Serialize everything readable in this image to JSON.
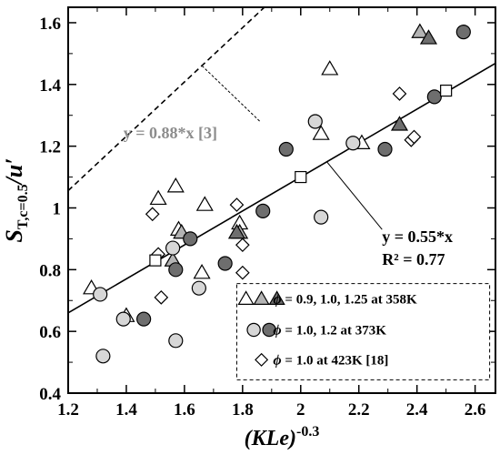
{
  "chart_data": {
    "type": "scatter",
    "xlim": [
      1.2,
      2.67
    ],
    "ylim": [
      0.4,
      1.65
    ],
    "x_ticks": [
      "1.2",
      "1.4",
      "1.6",
      "1.8",
      "2",
      "2.2",
      "2.4",
      "2.6"
    ],
    "y_ticks": [
      "0.4",
      "0.6",
      "0.8",
      "1",
      "1.2",
      "1.4",
      "1.6"
    ],
    "xlabel": {
      "main": "(KLe)",
      "sup": "-0.3"
    },
    "ylabel": {
      "main": "S",
      "sub": "T,c=0.5",
      "tail": "/u′"
    },
    "grid": false,
    "legend_position": "bottom-right",
    "fits": [
      {
        "slope": 0.55,
        "style": "solid",
        "color": "#000000",
        "label": "y = 0.55*x",
        "label2": "R² = 0.77"
      },
      {
        "slope": 0.88,
        "style": "dashed",
        "color": "#000000",
        "label": "y = 0.88*x [3]",
        "label_color": "#8c8c8c"
      }
    ],
    "series": [
      {
        "marker": "triangle",
        "fill": "#ffffff",
        "group": 0,
        "points": [
          [
            1.28,
            0.74
          ],
          [
            1.4,
            0.65
          ],
          [
            1.51,
            1.03
          ],
          [
            1.57,
            1.07
          ],
          [
            1.58,
            0.93
          ],
          [
            1.67,
            1.01
          ],
          [
            1.66,
            0.79
          ],
          [
            1.79,
            0.95
          ],
          [
            2.07,
            1.24
          ],
          [
            2.1,
            1.45
          ],
          [
            2.21,
            1.21
          ]
        ]
      },
      {
        "marker": "triangle",
        "fill": "#b4b4b4",
        "group": 0,
        "points": [
          [
            1.56,
            0.83
          ],
          [
            1.59,
            0.92
          ],
          [
            1.79,
            0.92
          ],
          [
            2.41,
            1.57
          ]
        ]
      },
      {
        "marker": "triangle",
        "fill": "#6e6e6e",
        "group": 0,
        "points": [
          [
            1.78,
            0.92
          ],
          [
            2.34,
            1.27
          ],
          [
            2.44,
            1.55
          ]
        ]
      },
      {
        "marker": "circle",
        "fill": "#d7d7d7",
        "group": 1,
        "points": [
          [
            1.31,
            0.72
          ],
          [
            1.32,
            0.52
          ],
          [
            1.39,
            0.64
          ],
          [
            1.56,
            0.87
          ],
          [
            1.57,
            0.57
          ],
          [
            1.65,
            0.74
          ],
          [
            2.05,
            1.28
          ],
          [
            2.07,
            0.97
          ],
          [
            2.18,
            1.21
          ]
        ]
      },
      {
        "marker": "circle",
        "fill": "#6e6e6e",
        "group": 1,
        "points": [
          [
            1.46,
            0.64
          ],
          [
            1.57,
            0.8
          ],
          [
            1.62,
            0.9
          ],
          [
            1.74,
            0.82
          ],
          [
            1.87,
            0.99
          ],
          [
            1.95,
            1.19
          ],
          [
            2.29,
            1.19
          ],
          [
            2.46,
            1.36
          ],
          [
            2.56,
            1.57
          ]
        ]
      },
      {
        "marker": "diamond",
        "fill": "#ffffff",
        "group": 2,
        "points": [
          [
            1.49,
            0.98
          ],
          [
            1.51,
            0.85
          ],
          [
            1.52,
            0.71
          ],
          [
            1.78,
            1.01
          ],
          [
            1.8,
            0.88
          ],
          [
            1.8,
            0.79
          ],
          [
            2.34,
            1.37
          ],
          [
            2.38,
            1.22
          ],
          [
            2.39,
            1.23
          ]
        ]
      },
      {
        "marker": "square",
        "fill": "#ffffff",
        "group": null,
        "points": [
          [
            1.5,
            0.83
          ],
          [
            2.0,
            1.1
          ],
          [
            2.5,
            1.38
          ]
        ]
      }
    ],
    "legend": [
      {
        "symbols": [
          [
            "triangle",
            "#ffffff"
          ],
          [
            "triangle",
            "#b4b4b4"
          ],
          [
            "triangle",
            "#6e6e6e"
          ]
        ],
        "phi": "ϕ",
        "label": " = 0.9, 1.0, 1.25 at 358K"
      },
      {
        "symbols": [
          [
            "circle",
            "#d7d7d7"
          ],
          [
            "circle",
            "#6e6e6e"
          ]
        ],
        "phi": "ϕ",
        "label": " = 1.0, 1.2 at 373K"
      },
      {
        "symbols": [
          [
            "diamond",
            "#ffffff"
          ]
        ],
        "phi": "ϕ",
        "label": " = 1.0 at 423K [18]"
      }
    ]
  }
}
